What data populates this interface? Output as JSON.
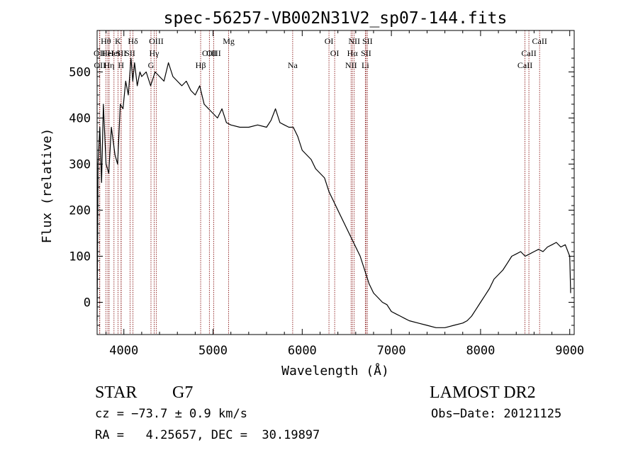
{
  "chart_data": {
    "type": "line",
    "title": "spec-56257-VB002N31V2_sp07-144.fits",
    "xlabel": "Wavelength (Å)",
    "ylabel": "Flux (relative)",
    "xlim": [
      3700,
      9050
    ],
    "ylim": [
      -70,
      590
    ],
    "x_ticks": [
      {
        "value": 4000,
        "label": "4000"
      },
      {
        "value": 5000,
        "label": "5000"
      },
      {
        "value": 6000,
        "label": "6000"
      },
      {
        "value": 7000,
        "label": "7000"
      },
      {
        "value": 8000,
        "label": "8000"
      },
      {
        "value": 9000,
        "label": "9000"
      }
    ],
    "y_ticks": [
      {
        "value": 0,
        "label": "0"
      },
      {
        "value": 100,
        "label": "100"
      },
      {
        "value": 200,
        "label": "200"
      },
      {
        "value": 300,
        "label": "300"
      },
      {
        "value": 400,
        "label": "400"
      },
      {
        "value": 500,
        "label": "500"
      }
    ],
    "grid": false,
    "line_color": "#000000",
    "marker_color": "#8b1a1a",
    "series": [
      {
        "x": [
          3700,
          3710,
          3730,
          3750,
          3770,
          3800,
          3830,
          3860,
          3900,
          3930,
          3960,
          3990,
          4020,
          4050,
          4080,
          4100,
          4120,
          4150,
          4180,
          4200,
          4250,
          4300,
          4350,
          4400,
          4450,
          4500,
          4550,
          4600,
          4650,
          4700,
          4750,
          4800,
          4850,
          4900,
          4950,
          5000,
          5050,
          5100,
          5150,
          5200,
          5300,
          5400,
          5500,
          5600,
          5650,
          5700,
          5750,
          5800,
          5850,
          5900,
          5950,
          6000,
          6050,
          6100,
          6150,
          6200,
          6250,
          6300,
          6350,
          6400,
          6450,
          6500,
          6550,
          6600,
          6650,
          6700,
          6750,
          6800,
          6850,
          6900,
          6950,
          7000,
          7050,
          7100,
          7150,
          7200,
          7300,
          7400,
          7500,
          7600,
          7700,
          7800,
          7850,
          7900,
          7950,
          8000,
          8050,
          8100,
          8150,
          8200,
          8250,
          8300,
          8350,
          8400,
          8450,
          8500,
          8550,
          8600,
          8650,
          8700,
          8750,
          8800,
          8850,
          8900,
          8950,
          9000,
          9010
        ],
        "y": [
          -40,
          300,
          380,
          260,
          430,
          300,
          280,
          380,
          320,
          300,
          430,
          420,
          480,
          450,
          530,
          480,
          520,
          470,
          500,
          490,
          500,
          470,
          500,
          490,
          480,
          520,
          490,
          480,
          470,
          480,
          460,
          450,
          470,
          430,
          420,
          410,
          400,
          420,
          390,
          385,
          380,
          380,
          385,
          380,
          395,
          420,
          390,
          385,
          380,
          380,
          360,
          330,
          320,
          310,
          290,
          280,
          270,
          240,
          220,
          200,
          180,
          160,
          140,
          120,
          100,
          70,
          40,
          20,
          10,
          0,
          -5,
          -20,
          -25,
          -30,
          -35,
          -40,
          -45,
          -50,
          -55,
          -55,
          -50,
          -45,
          -40,
          -30,
          -15,
          0,
          15,
          30,
          50,
          60,
          70,
          85,
          100,
          105,
          110,
          100,
          105,
          110,
          115,
          110,
          120,
          125,
          130,
          120,
          125,
          100,
          20
        ],
        "label_values_visible": false
      }
    ],
    "spectral_lines": [
      {
        "wavelength": 3727,
        "label": "OII",
        "row": 2
      },
      {
        "wavelength": 3730,
        "label": "OII",
        "row": 3
      },
      {
        "wavelength": 3798,
        "label": "Hθ",
        "row": 1
      },
      {
        "wavelength": 3820,
        "label": "HeI",
        "row": 2
      },
      {
        "wavelength": 3835,
        "label": "Hη",
        "row": 3
      },
      {
        "wavelength": 3889,
        "label": "HeI",
        "row": 2
      },
      {
        "wavelength": 3934,
        "label": "K",
        "row": 1
      },
      {
        "wavelength": 3968,
        "label": "H",
        "row": 3
      },
      {
        "wavelength": 3970,
        "label": "SII",
        "row": 2
      },
      {
        "wavelength": 4102,
        "label": "Hδ",
        "row": 1
      },
      {
        "wavelength": 4070,
        "label": "SII",
        "row": 2
      },
      {
        "wavelength": 4304,
        "label": "G",
        "row": 3
      },
      {
        "wavelength": 4340,
        "label": "Hγ",
        "row": 2
      },
      {
        "wavelength": 4363,
        "label": "OIII",
        "row": 1
      },
      {
        "wavelength": 4861,
        "label": "Hβ",
        "row": 3
      },
      {
        "wavelength": 4959,
        "label": "OIII",
        "row": 2
      },
      {
        "wavelength": 5007,
        "label": "OIII",
        "row": 2
      },
      {
        "wavelength": 5175,
        "label": "Mg",
        "row": 1
      },
      {
        "wavelength": 5893,
        "label": "Na",
        "row": 3
      },
      {
        "wavelength": 6300,
        "label": "OI",
        "row": 1
      },
      {
        "wavelength": 6364,
        "label": "OI",
        "row": 2
      },
      {
        "wavelength": 6548,
        "label": "NII",
        "row": 3
      },
      {
        "wavelength": 6563,
        "label": "Hα",
        "row": 2
      },
      {
        "wavelength": 6583,
        "label": "NII",
        "row": 1
      },
      {
        "wavelength": 6708,
        "label": "Li",
        "row": 3
      },
      {
        "wavelength": 6716,
        "label": "SII",
        "row": 2
      },
      {
        "wavelength": 6731,
        "label": "SII",
        "row": 1
      },
      {
        "wavelength": 8498,
        "label": "CaII",
        "row": 3
      },
      {
        "wavelength": 8542,
        "label": "CaII",
        "row": 2
      },
      {
        "wavelength": 8662,
        "label": "CaII",
        "row": 1
      }
    ]
  },
  "info": {
    "class": "STAR",
    "subclass": "G7",
    "survey": "LAMOST DR2",
    "cz": "cz = −73.7 ± 0.9 km/s",
    "obs_date": "Obs−Date: 20121125",
    "coords": "RA =   4.25657, DEC =  30.19897"
  }
}
